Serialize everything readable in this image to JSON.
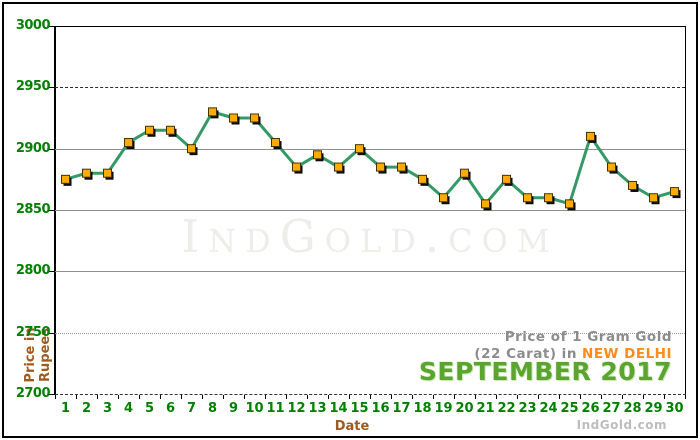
{
  "watermark_text": "IndGold.com",
  "credit_text": "IndGold.com",
  "title": {
    "line1": "Price of 1 Gram Gold",
    "line2_gray": "(22 Carat) in",
    "line2_orange": "NEW DELHI",
    "line3": "SEPTEMBER 2017"
  },
  "axis_labels": {
    "y_line1": "Price in",
    "y_line2": "Rupees",
    "x": "Date"
  },
  "chart_data": {
    "type": "line",
    "title": "Price of 1 Gram Gold (22 Carat) in NEW DELHI - SEPTEMBER 2017",
    "x": [
      1,
      2,
      3,
      4,
      5,
      6,
      7,
      8,
      9,
      10,
      11,
      12,
      13,
      14,
      15,
      16,
      17,
      18,
      19,
      20,
      21,
      22,
      23,
      24,
      25,
      26,
      27,
      28,
      29,
      30
    ],
    "values": [
      2875,
      2880,
      2880,
      2905,
      2915,
      2915,
      2900,
      2930,
      2925,
      2925,
      2905,
      2885,
      2895,
      2885,
      2900,
      2885,
      2885,
      2875,
      2860,
      2880,
      2855,
      2875,
      2860,
      2860,
      2855,
      2910,
      2885,
      2870,
      2860,
      2865
    ],
    "xlabel": "Date",
    "ylabel": "Price in Rupees",
    "ylim": [
      2700,
      3000
    ],
    "yticks": [
      2700,
      2750,
      2800,
      2850,
      2900,
      2950,
      3000
    ],
    "grid_styles": {
      "2750": "dotted",
      "2800": "solid",
      "2850": "solid",
      "2900": "solid",
      "2950": "dashed"
    },
    "grid": true,
    "legend": "none",
    "colors": {
      "line": "#339966",
      "marker": "#ffab00",
      "marker_border": "#403300",
      "marker_shadow": "#0a0a0a",
      "axis_text_green": "#008000",
      "axis_title_brown": "#a05a1e",
      "title_gray": "#8c8c8c",
      "title_orange": "#ff8c1a",
      "title_green": "#5ba42e"
    }
  }
}
